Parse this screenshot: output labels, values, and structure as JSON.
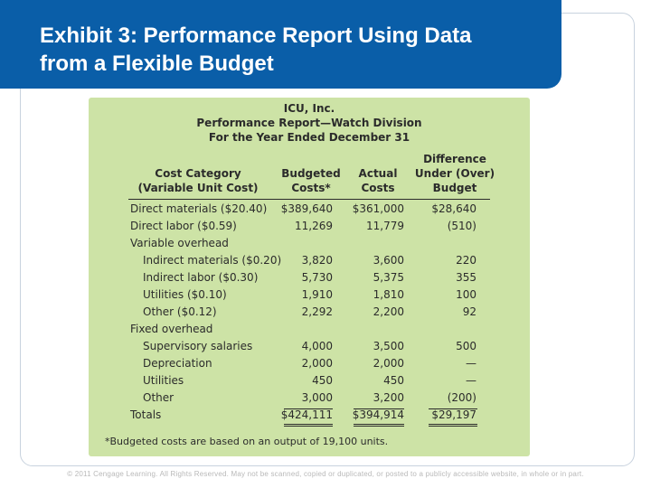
{
  "slide": {
    "title_line1": "Exhibit 3: Performance Report Using Data",
    "title_line2": "from a Flexible Budget"
  },
  "report": {
    "company": "ICU, Inc.",
    "name": "Performance Report—Watch Division",
    "period": "For the Year Ended December 31",
    "columns": {
      "category_line1": "Cost Category",
      "category_line2": "(Variable Unit Cost)",
      "budgeted_line1": "Budgeted",
      "budgeted_line2": "Costs*",
      "actual_line1": "Actual",
      "actual_line2": "Costs",
      "difference_line1": "Difference",
      "difference_line2": "Under (Over)",
      "difference_line3": "Budget"
    },
    "rows": [
      {
        "label": "Direct materials ($20.40)",
        "budgeted": "$389,640",
        "actual": "$361,000",
        "difference": "$28,640"
      },
      {
        "label": "Direct labor ($0.59)",
        "budgeted": "11,269",
        "actual": "11,779",
        "difference": "(510)"
      },
      {
        "label": "Variable overhead",
        "budgeted": "",
        "actual": "",
        "difference": ""
      },
      {
        "label": "Indirect materials ($0.20)",
        "budgeted": "3,820",
        "actual": "3,600",
        "difference": "220"
      },
      {
        "label": "Indirect labor ($0.30)",
        "budgeted": "5,730",
        "actual": "5,375",
        "difference": "355"
      },
      {
        "label": "Utilities ($0.10)",
        "budgeted": "1,910",
        "actual": "1,810",
        "difference": "100"
      },
      {
        "label": "Other ($0.12)",
        "budgeted": "2,292",
        "actual": "2,200",
        "difference": "92"
      },
      {
        "label": "Fixed overhead",
        "budgeted": "",
        "actual": "",
        "difference": ""
      },
      {
        "label": "Supervisory salaries",
        "budgeted": "4,000",
        "actual": "3,500",
        "difference": "500"
      },
      {
        "label": "Depreciation",
        "budgeted": "2,000",
        "actual": "2,000",
        "difference": "—"
      },
      {
        "label": "Utilities",
        "budgeted": "450",
        "actual": "450",
        "difference": "—"
      },
      {
        "label": "Other",
        "budgeted": "3,000",
        "actual": "3,200",
        "difference": "(200)"
      },
      {
        "label": "Totals",
        "budgeted": "$424,111",
        "actual": "$394,914",
        "difference": "$29,197"
      }
    ],
    "footnote": "*Budgeted costs are based on an output of 19,100 units."
  },
  "copyright": "© 2011 Cengage Learning. All Rights Reserved. May not be scanned, copied or duplicated, or posted to a publicly accessible website, in whole or in part."
}
